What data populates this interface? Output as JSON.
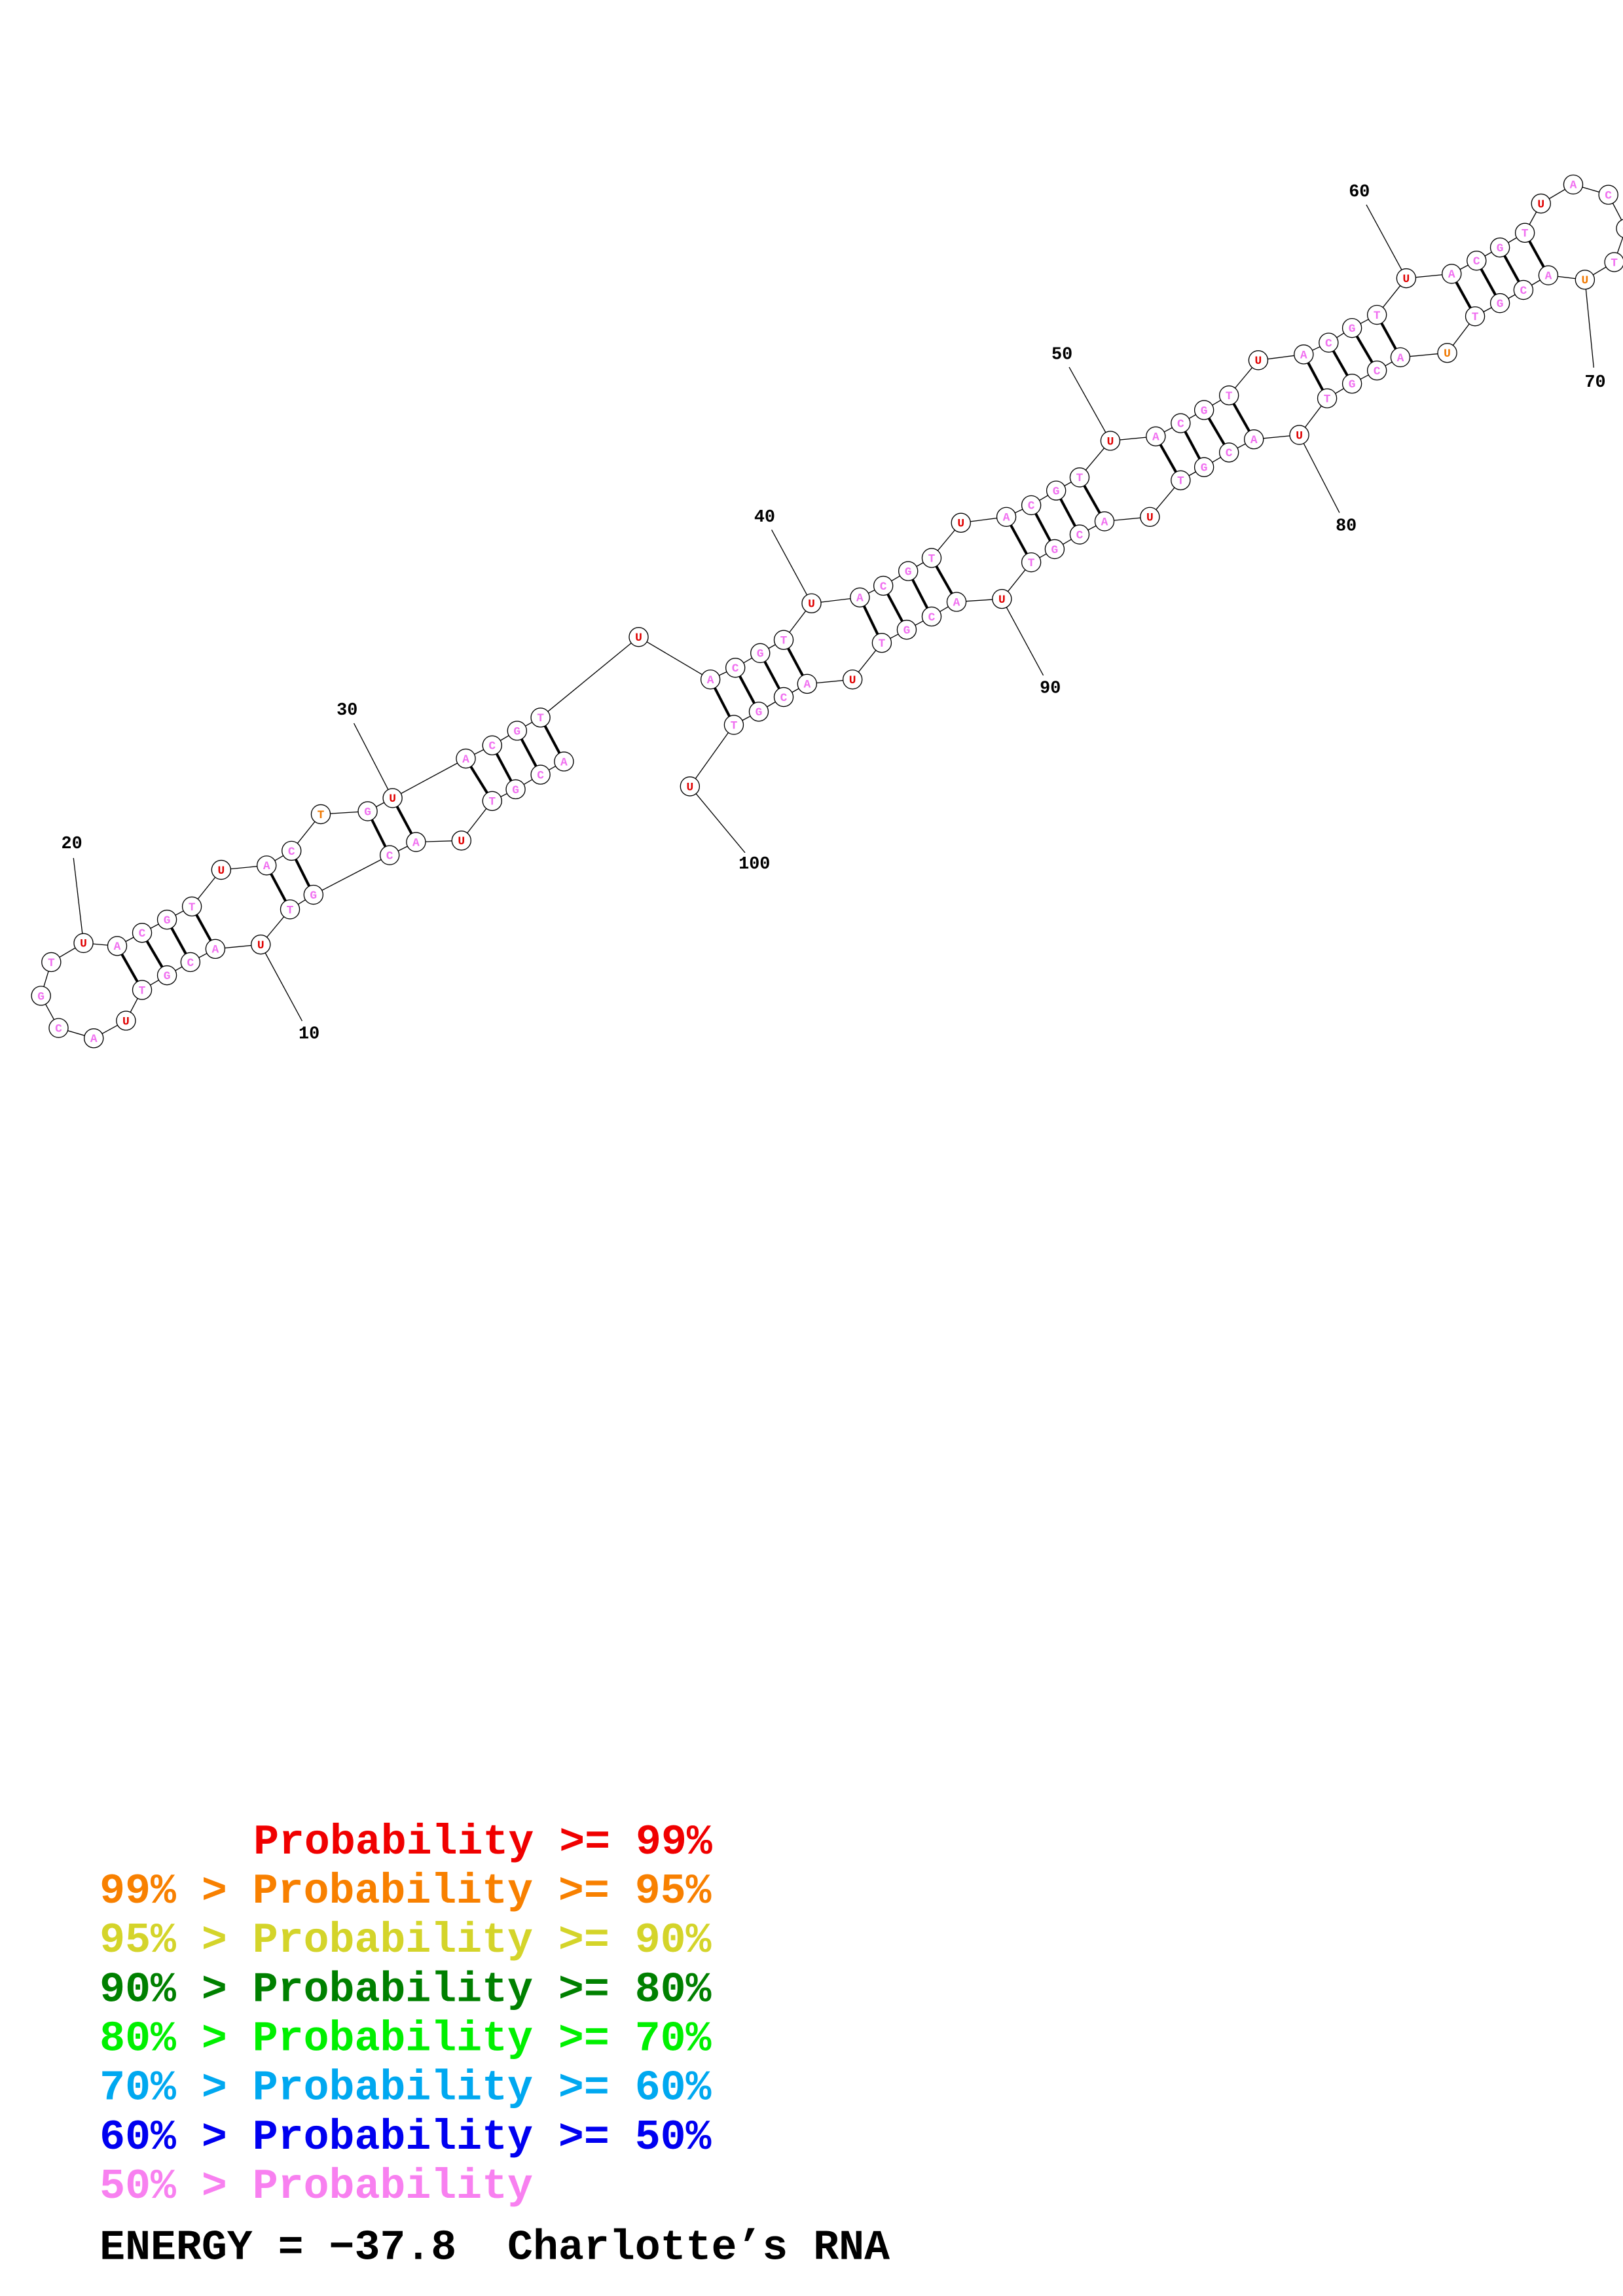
{
  "sequence": [
    "A",
    "C",
    "G",
    "T",
    "U",
    "A",
    "C",
    "G",
    "T",
    "U",
    "A",
    "C",
    "G",
    "T",
    "U",
    "A",
    "C",
    "G",
    "T",
    "U",
    "A",
    "C",
    "G",
    "T",
    "U",
    "A",
    "C",
    "T",
    "G",
    "U",
    "A",
    "C",
    "G",
    "T",
    "U",
    "A",
    "C",
    "G",
    "T",
    "U",
    "A",
    "C",
    "G",
    "T",
    "U",
    "A",
    "C",
    "G",
    "T",
    "U",
    "A",
    "C",
    "G",
    "T",
    "U",
    "A",
    "C",
    "G",
    "T",
    "U",
    "A",
    "C",
    "G",
    "T",
    "U",
    "A",
    "C",
    "G",
    "T",
    "U",
    "A",
    "C",
    "G",
    "T",
    "U",
    "A",
    "C",
    "G",
    "T",
    "U",
    "A",
    "C",
    "G",
    "T",
    "U",
    "A",
    "C",
    "G",
    "T",
    "U",
    "A",
    "C",
    "G",
    "T",
    "U",
    "A",
    "C",
    "G",
    "T",
    "U"
  ],
  "index_labels": [
    10,
    20,
    30,
    40,
    50,
    60,
    70,
    80,
    90,
    100
  ],
  "legend": [
    "Probability >= 99%",
    "99% > Probability >= 95%",
    "95% > Probability >= 90%",
    "90% > Probability >= 80%",
    "80% > Probability >= 70%",
    "70% > Probability >= 60%",
    "60% > Probability >= 50%",
    "50% > Probability"
  ],
  "footer": "ENERGY = −37.8  Charlotte’s RNA"
}
